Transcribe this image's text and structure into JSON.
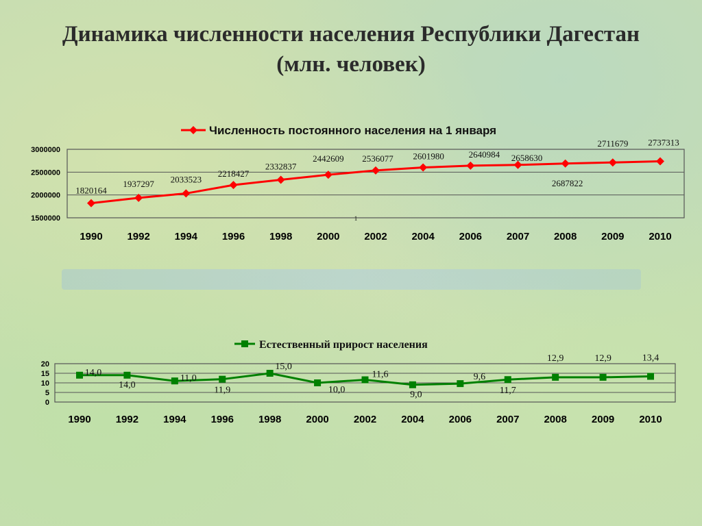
{
  "slide": {
    "title_line1": "Динамика численности населения Республики Дагестан",
    "title_line2": "(млн. человек)"
  },
  "colors": {
    "population": "#ff0000",
    "growth": "#008000"
  },
  "chart_data": [
    {
      "type": "line",
      "legend": "Численность постоянного населения на 1 января",
      "legend_position": "top",
      "categories": [
        "1990",
        "1992",
        "1994",
        "1996",
        "1998",
        "2000",
        "2002",
        "2004",
        "2006",
        "2007",
        "2008",
        "2009",
        "2010"
      ],
      "values": [
        1820164,
        1937297,
        2033523,
        2218427,
        2332837,
        2442609,
        2536077,
        2601980,
        2640984,
        2658630,
        2687822,
        2711679,
        2737313
      ],
      "data_labels": [
        "1820164",
        "1937297",
        "2033523",
        "2218427",
        "2332837",
        "2442609",
        "2536077",
        "2601980",
        "2640984",
        "2658630",
        "2687822",
        "2711679",
        "2737313"
      ],
      "ylim": [
        1500000,
        3000000
      ],
      "yticks": [
        "1500000",
        "2000000",
        "2500000",
        "3000000"
      ],
      "grid": true,
      "stray_label": "1"
    },
    {
      "type": "line",
      "legend": "Естественный прирост населения",
      "legend_position": "top",
      "categories": [
        "1990",
        "1992",
        "1994",
        "1996",
        "1998",
        "2000",
        "2002",
        "2004",
        "2006",
        "2007",
        "2008",
        "2009",
        "2010"
      ],
      "values": [
        14.0,
        14.0,
        11.0,
        11.9,
        15.0,
        10.0,
        11.6,
        9.0,
        9.6,
        11.7,
        12.9,
        12.9,
        13.4
      ],
      "data_labels": [
        "14,0",
        "14,0",
        "11,0",
        "11,9",
        "15,0",
        "10,0",
        "11,6",
        "9,0",
        "9,6",
        "11,7",
        "12,9",
        "12,9",
        "13,4"
      ],
      "ylim": [
        0,
        20
      ],
      "yticks": [
        "0",
        "5",
        "10",
        "15",
        "20"
      ],
      "grid": true
    }
  ]
}
